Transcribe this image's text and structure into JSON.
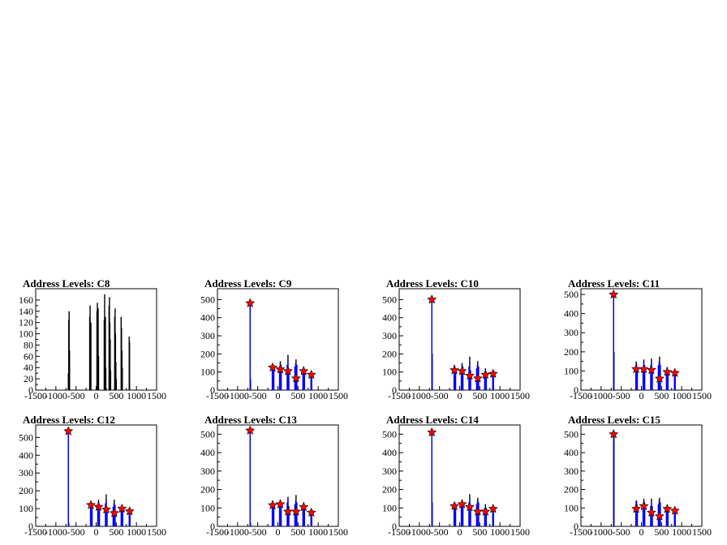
{
  "chart_data": [
    {
      "type": "bar",
      "title": "Address Levels: C8",
      "xlim": [
        -1500,
        1500
      ],
      "ylim": [
        0,
        180
      ],
      "xticks": [
        -1500,
        -1000,
        -500,
        0,
        500,
        1000,
        1500
      ],
      "yticks": [
        0,
        20,
        40,
        60,
        80,
        100,
        120,
        140,
        160
      ],
      "series": [
        {
          "color": "#000000",
          "x": [
            -690,
            -680,
            -670,
            -660,
            -160,
            -150,
            -140,
            -130,
            20,
            30,
            40,
            50,
            60,
            200,
            210,
            220,
            230,
            240,
            320,
            330,
            340,
            350,
            360,
            460,
            470,
            480,
            490,
            500,
            620,
            630,
            640,
            650,
            820,
            830
          ],
          "values": [
            30,
            125,
            140,
            70,
            130,
            150,
            95,
            120,
            140,
            155,
            110,
            145,
            60,
            125,
            170,
            100,
            130,
            40,
            150,
            165,
            120,
            90,
            35,
            130,
            145,
            100,
            50,
            20,
            130,
            110,
            70,
            40,
            95,
            85
          ]
        }
      ],
      "peaks": {
        "x": [],
        "y": []
      }
    },
    {
      "type": "bar",
      "title": "Address Levels: C9",
      "xlim": [
        -1500,
        1500
      ],
      "ylim": [
        0,
        560
      ],
      "xticks": [
        -1500,
        -1000,
        -500,
        0,
        500,
        1000,
        1500
      ],
      "yticks": [
        0,
        100,
        200,
        300,
        400,
        500
      ],
      "series": [
        {
          "color": "#000000",
          "x": [
            -690,
            -680,
            -130,
            -110,
            60,
            80,
            250,
            270,
            450,
            470,
            640,
            660,
            830
          ],
          "values": [
            490,
            60,
            140,
            120,
            160,
            140,
            195,
            120,
            170,
            140,
            130,
            110,
            95
          ]
        },
        {
          "color": "#0000ff",
          "x": [
            -690,
            -685,
            -140,
            -120,
            -100,
            40,
            60,
            80,
            230,
            250,
            270,
            420,
            440,
            460,
            620,
            640,
            660,
            820,
            840
          ],
          "values": [
            470,
            60,
            120,
            130,
            110,
            120,
            150,
            130,
            140,
            160,
            110,
            130,
            150,
            140,
            110,
            130,
            100,
            80,
            90
          ]
        }
      ],
      "peaks": {
        "x": [
          -690,
          -130,
          60,
          250,
          450,
          640,
          830
        ],
        "y": [
          480,
          125,
          115,
          105,
          65,
          105,
          85
        ]
      }
    },
    {
      "type": "bar",
      "title": "Address Levels: C10",
      "xlim": [
        -1500,
        1500
      ],
      "ylim": [
        0,
        560
      ],
      "xticks": [
        -1500,
        -1000,
        -500,
        0,
        500,
        1000,
        1500
      ],
      "yticks": [
        0,
        100,
        200,
        300,
        400,
        500
      ],
      "series": [
        {
          "color": "#000000",
          "x": [
            -690,
            -680,
            -130,
            -110,
            60,
            80,
            250,
            270,
            450,
            470,
            640,
            660,
            830
          ],
          "values": [
            510,
            200,
            140,
            120,
            150,
            130,
            185,
            110,
            160,
            130,
            120,
            100,
            100
          ]
        },
        {
          "color": "#0000ff",
          "x": [
            -690,
            -685,
            -140,
            -120,
            -100,
            40,
            60,
            80,
            230,
            250,
            270,
            420,
            440,
            460,
            620,
            640,
            660,
            820,
            840
          ],
          "values": [
            490,
            200,
            110,
            130,
            100,
            110,
            140,
            120,
            130,
            150,
            100,
            120,
            140,
            130,
            100,
            120,
            90,
            85,
            95
          ]
        }
      ],
      "peaks": {
        "x": [
          -690,
          -130,
          60,
          250,
          450,
          640,
          830
        ],
        "y": [
          500,
          110,
          105,
          80,
          65,
          85,
          90
        ]
      }
    },
    {
      "type": "bar",
      "title": "Address Levels: C11",
      "xlim": [
        -1500,
        1500
      ],
      "ylim": [
        0,
        530
      ],
      "xticks": [
        -1500,
        -1000,
        -500,
        0,
        500,
        1000,
        1500
      ],
      "yticks": [
        0,
        100,
        200,
        300,
        400,
        500
      ],
      "series": [
        {
          "color": "#000000",
          "x": [
            -690,
            -680,
            -130,
            -110,
            60,
            80,
            250,
            270,
            450,
            470,
            640,
            660,
            830
          ],
          "values": [
            505,
            200,
            150,
            120,
            160,
            130,
            165,
            110,
            175,
            130,
            120,
            100,
            90
          ]
        },
        {
          "color": "#0000ff",
          "x": [
            -690,
            -685,
            -140,
            -120,
            -100,
            40,
            60,
            80,
            230,
            250,
            270,
            420,
            440,
            460,
            620,
            640,
            660,
            820,
            840
          ],
          "values": [
            490,
            200,
            120,
            140,
            110,
            120,
            150,
            130,
            130,
            150,
            100,
            130,
            150,
            140,
            100,
            120,
            90,
            80,
            85
          ]
        }
      ],
      "peaks": {
        "x": [
          -690,
          -130,
          60,
          250,
          450,
          640,
          830
        ],
        "y": [
          500,
          110,
          110,
          105,
          60,
          95,
          90
        ]
      }
    },
    {
      "type": "bar",
      "title": "Address Levels: C12",
      "xlim": [
        -1500,
        1500
      ],
      "ylim": [
        0,
        570
      ],
      "xticks": [
        -1500,
        -1000,
        -500,
        0,
        500,
        1000,
        1500
      ],
      "yticks": [
        0,
        100,
        200,
        300,
        400,
        500
      ],
      "series": [
        {
          "color": "#000000",
          "x": [
            -690,
            -680,
            -130,
            -110,
            60,
            80,
            250,
            270,
            450,
            470,
            640,
            660,
            830
          ],
          "values": [
            545,
            20,
            140,
            110,
            150,
            120,
            180,
            110,
            150,
            120,
            120,
            100,
            90
          ]
        },
        {
          "color": "#0000ff",
          "x": [
            -690,
            -685,
            -140,
            -120,
            -100,
            40,
            60,
            80,
            230,
            250,
            270,
            420,
            440,
            460,
            620,
            640,
            660,
            820,
            840
          ],
          "values": [
            530,
            20,
            110,
            130,
            100,
            110,
            140,
            110,
            130,
            150,
            100,
            110,
            130,
            120,
            100,
            110,
            90,
            80,
            85
          ]
        }
      ],
      "peaks": {
        "x": [
          -690,
          -130,
          60,
          250,
          450,
          640,
          830
        ],
        "y": [
          535,
          120,
          110,
          95,
          75,
          100,
          85
        ]
      }
    },
    {
      "type": "bar",
      "title": "Address Levels: C13",
      "xlim": [
        -1500,
        1500
      ],
      "ylim": [
        0,
        550
      ],
      "xticks": [
        -1500,
        -1000,
        -500,
        0,
        500,
        1000,
        1500
      ],
      "yticks": [
        0,
        100,
        200,
        300,
        400,
        500
      ],
      "series": [
        {
          "color": "#000000",
          "x": [
            -690,
            -680,
            -130,
            -110,
            60,
            80,
            250,
            270,
            450,
            470,
            640,
            660,
            830
          ],
          "values": [
            530,
            20,
            140,
            120,
            145,
            130,
            160,
            110,
            170,
            130,
            130,
            100,
            90
          ]
        },
        {
          "color": "#0000ff",
          "x": [
            -690,
            -685,
            -140,
            -120,
            -100,
            40,
            60,
            80,
            230,
            250,
            270,
            420,
            440,
            460,
            620,
            640,
            660,
            820,
            840
          ],
          "values": [
            510,
            20,
            120,
            130,
            110,
            120,
            140,
            120,
            130,
            150,
            100,
            120,
            140,
            130,
            100,
            120,
            90,
            75,
            85
          ]
        }
      ],
      "peaks": {
        "x": [
          -690,
          -130,
          60,
          250,
          450,
          640,
          830
        ],
        "y": [
          520,
          115,
          120,
          80,
          80,
          105,
          75
        ]
      }
    },
    {
      "type": "bar",
      "title": "Address Levels: C14",
      "xlim": [
        -1500,
        1500
      ],
      "ylim": [
        0,
        550
      ],
      "xticks": [
        -1500,
        -1000,
        -500,
        0,
        500,
        1000,
        1500
      ],
      "yticks": [
        0,
        100,
        200,
        300,
        400,
        500
      ],
      "series": [
        {
          "color": "#000000",
          "x": [
            -690,
            -680,
            -130,
            -110,
            60,
            80,
            250,
            270,
            450,
            470,
            640,
            660,
            830
          ],
          "values": [
            520,
            130,
            130,
            120,
            145,
            120,
            175,
            110,
            155,
            130,
            120,
            100,
            95
          ]
        },
        {
          "color": "#0000ff",
          "x": [
            -690,
            -685,
            -140,
            -120,
            -100,
            40,
            60,
            80,
            230,
            250,
            270,
            420,
            440,
            460,
            620,
            640,
            660,
            820,
            840
          ],
          "values": [
            500,
            130,
            110,
            130,
            100,
            110,
            140,
            120,
            130,
            150,
            100,
            120,
            140,
            130,
            100,
            110,
            90,
            85,
            95
          ]
        }
      ],
      "peaks": {
        "x": [
          -690,
          -130,
          60,
          250,
          450,
          640,
          830
        ],
        "y": [
          510,
          110,
          120,
          105,
          80,
          80,
          95
        ]
      }
    },
    {
      "type": "bar",
      "title": "Address Levels: C15",
      "xlim": [
        -1500,
        1500
      ],
      "ylim": [
        0,
        550
      ],
      "xticks": [
        -1500,
        -1000,
        -500,
        0,
        500,
        1000,
        1500
      ],
      "yticks": [
        0,
        100,
        200,
        300,
        400,
        500
      ],
      "series": [
        {
          "color": "#000000",
          "x": [
            -690,
            -680,
            -130,
            -110,
            60,
            80,
            250,
            270,
            450,
            470,
            640,
            660,
            830
          ],
          "values": [
            510,
            500,
            140,
            120,
            150,
            130,
            150,
            110,
            155,
            130,
            110,
            100,
            90
          ]
        },
        {
          "color": "#0000ff",
          "x": [
            -690,
            -685,
            -140,
            -120,
            -100,
            40,
            60,
            80,
            230,
            250,
            270,
            420,
            440,
            460,
            620,
            640,
            660,
            820,
            840
          ],
          "values": [
            490,
            490,
            120,
            140,
            110,
            120,
            140,
            120,
            110,
            130,
            90,
            120,
            140,
            130,
            90,
            110,
            80,
            75,
            85
          ]
        }
      ],
      "peaks": {
        "x": [
          -690,
          -130,
          60,
          250,
          450,
          640,
          830
        ],
        "y": [
          500,
          95,
          110,
          75,
          55,
          95,
          85
        ]
      }
    }
  ]
}
